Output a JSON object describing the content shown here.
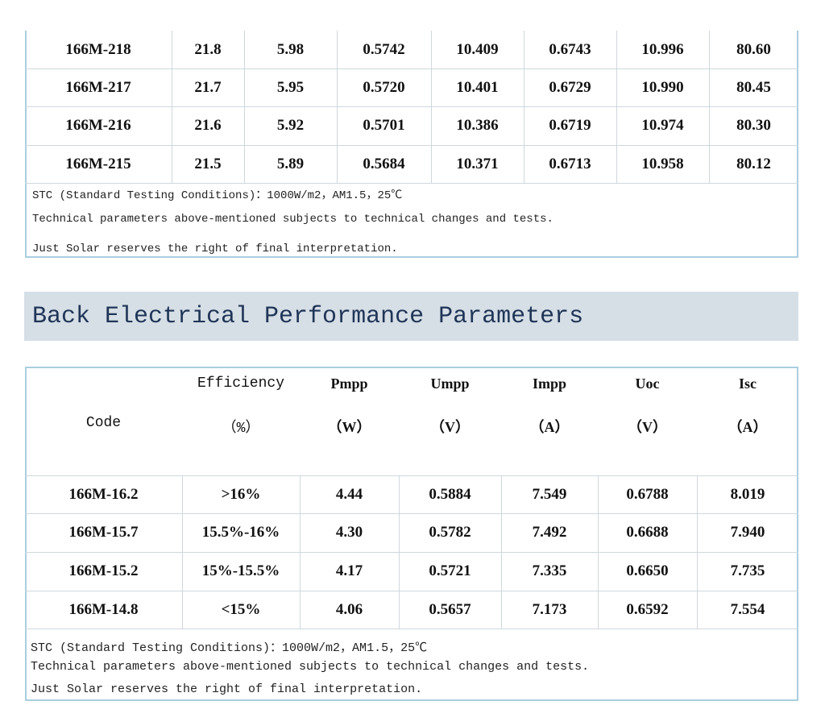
{
  "front_table": {
    "rows": [
      [
        "166M-218",
        "21.8",
        "5.98",
        "0.5742",
        "10.409",
        "0.6743",
        "10.996",
        "80.60"
      ],
      [
        "166M-217",
        "21.7",
        "5.95",
        "0.5720",
        "10.401",
        "0.6729",
        "10.990",
        "80.45"
      ],
      [
        "166M-216",
        "21.6",
        "5.92",
        "0.5701",
        "10.386",
        "0.6719",
        "10.974",
        "80.30"
      ],
      [
        "166M-215",
        "21.5",
        "5.89",
        "0.5684",
        "10.371",
        "0.6713",
        "10.958",
        "80.12"
      ]
    ],
    "notes": [
      "STC (Standard Testing Conditions)：1000W/m2，AM1.5，25℃",
      "Technical parameters above-mentioned subjects to technical changes and tests.",
      "Just Solar reserves the right of final interpretation."
    ]
  },
  "section_title": "Back Electrical Performance Parameters",
  "back_table": {
    "header": {
      "code": "Code",
      "columns": [
        [
          "Efficiency",
          "（%）"
        ],
        [
          "Pmpp",
          "（W）"
        ],
        [
          "Umpp",
          "（V）"
        ],
        [
          "Impp",
          "（A）"
        ],
        [
          "Uoc",
          "（V）"
        ],
        [
          "Isc",
          "（A）"
        ]
      ]
    },
    "rows": [
      [
        "166M-16.2",
        ">16%",
        "4.44",
        "0.5884",
        "7.549",
        "0.6788",
        "8.019"
      ],
      [
        "166M-15.7",
        "15.5%-16%",
        "4.30",
        "0.5782",
        "7.492",
        "0.6688",
        "7.940"
      ],
      [
        "166M-15.2",
        "15%-15.5%",
        "4.17",
        "0.5721",
        "7.335",
        "0.6650",
        "7.735"
      ],
      [
        "166M-14.8",
        "<15%",
        "4.06",
        "0.5657",
        "7.173",
        "0.6592",
        "7.554"
      ]
    ],
    "notes": [
      "STC (Standard Testing Conditions)：1000W/m2，AM1.5，25℃",
      "Technical parameters above-mentioned subjects to technical changes and tests.",
      "Just Solar reserves the right of final interpretation."
    ]
  }
}
